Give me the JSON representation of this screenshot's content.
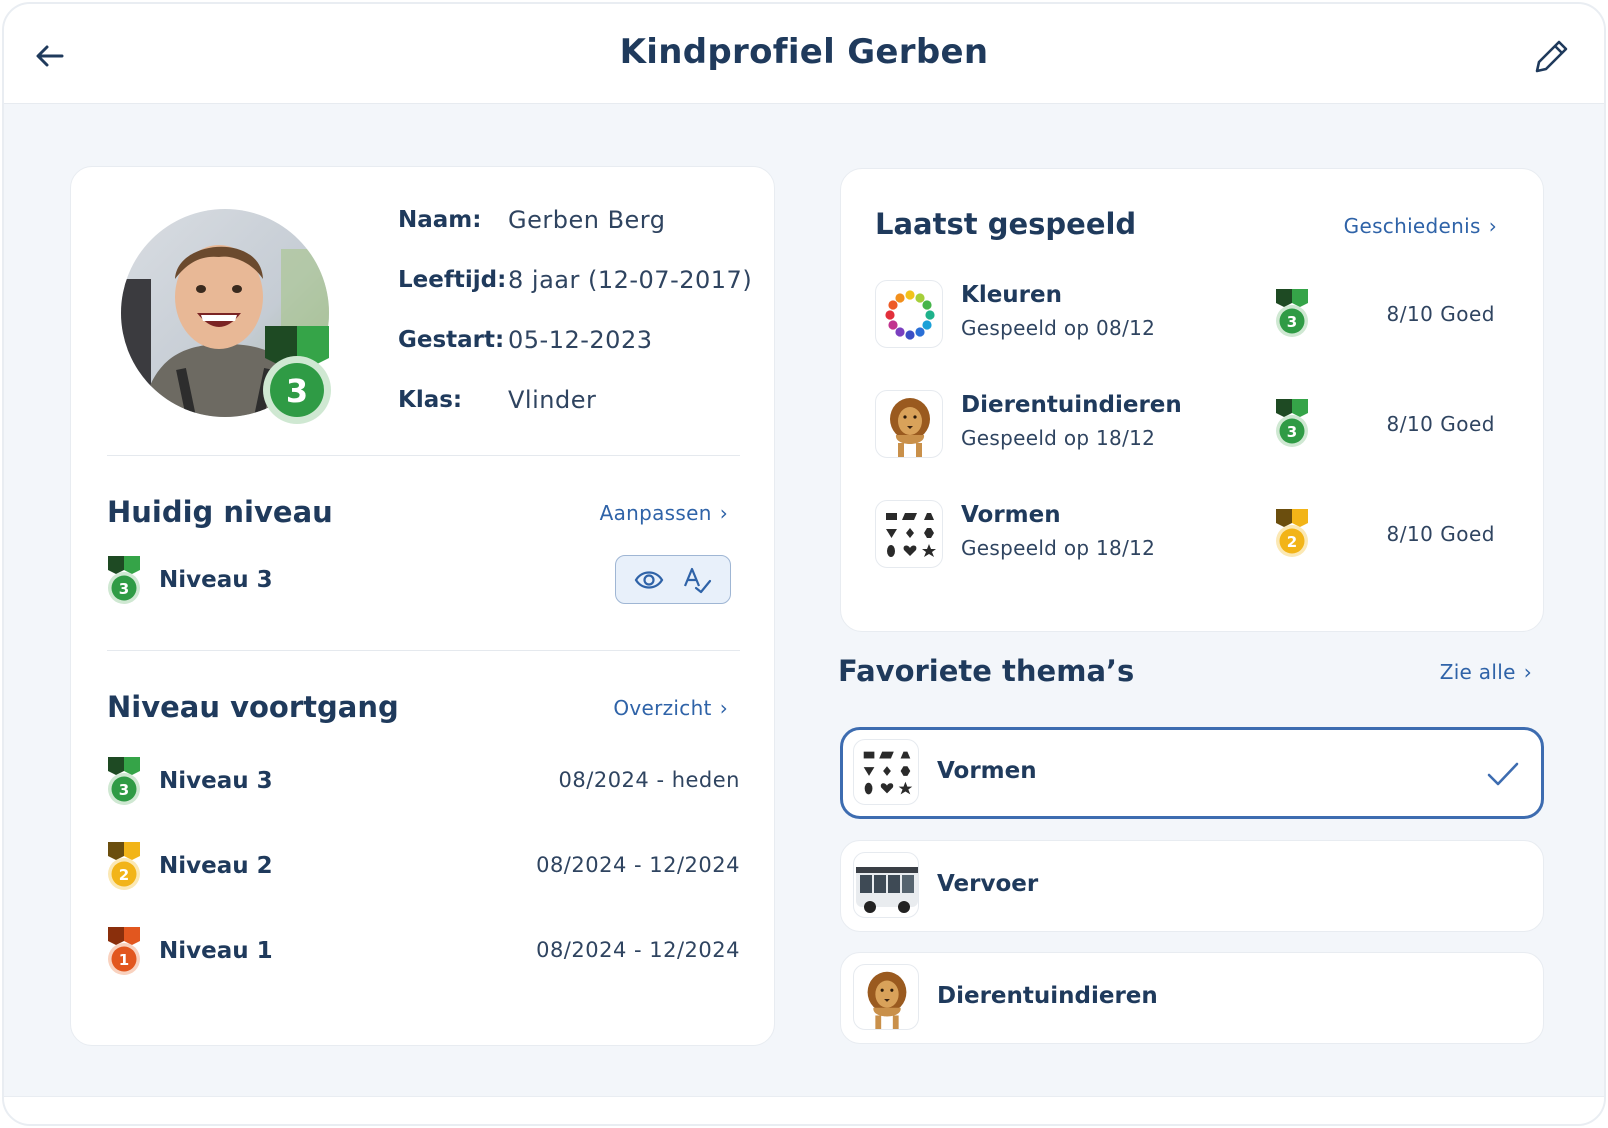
{
  "header": {
    "title": "Kindprofiel Gerben",
    "back_icon": "arrow-left-icon",
    "edit_icon": "pencil-icon"
  },
  "profile": {
    "name_label": "Naam:",
    "name_value": "Gerben Berg",
    "age_label": "Leeftijd:",
    "age_value": "8 jaar (12-07-2017)",
    "started_label": "Gestart:",
    "started_value": "05-12-2023",
    "class_label": "Klas:",
    "class_value": "Vlinder",
    "avatar_medal_number": "3"
  },
  "current_level": {
    "title": "Huidig niveau",
    "link": "Aanpassen",
    "level_label": "Niveau 3",
    "medal_number": "3"
  },
  "level_progress": {
    "title": "Niveau voortgang",
    "link": "Overzicht",
    "items": [
      {
        "label": "Niveau 3",
        "period": "08/2024 - heden",
        "medal": "3"
      },
      {
        "label": "Niveau 2",
        "period": "08/2024 - 12/2024",
        "medal": "2"
      },
      {
        "label": "Niveau 1",
        "period": "08/2024 - 12/2024",
        "medal": "1"
      }
    ]
  },
  "last_played": {
    "title": "Laatst gespeeld",
    "link": "Geschiedenis",
    "items": [
      {
        "name": "Kleuren",
        "date": "Gespeeld op 08/12",
        "medal": "3",
        "score": "8/10 Goed",
        "icon": "color-wheel-icon"
      },
      {
        "name": "Dierentuindieren",
        "date": "Gespeeld op 18/12",
        "medal": "3",
        "score": "8/10 Goed",
        "icon": "lion-icon"
      },
      {
        "name": "Vormen",
        "date": "Gespeeld op 18/12",
        "medal": "2",
        "score": "8/10 Goed",
        "icon": "shapes-icon"
      }
    ]
  },
  "favorite_themes": {
    "title": "Favoriete thema’s",
    "link": "Zie alle",
    "items": [
      {
        "name": "Vormen",
        "selected": true,
        "icon": "shapes-icon"
      },
      {
        "name": "Vervoer",
        "selected": false,
        "icon": "bus-icon"
      },
      {
        "name": "Dierentuindieren",
        "selected": false,
        "icon": "lion-icon"
      }
    ]
  },
  "colors": {
    "primary": "#1f3a5c",
    "link": "#2f63a8",
    "level3": "#2f9b45",
    "level2": "#f2b418",
    "level1": "#e2571f"
  }
}
